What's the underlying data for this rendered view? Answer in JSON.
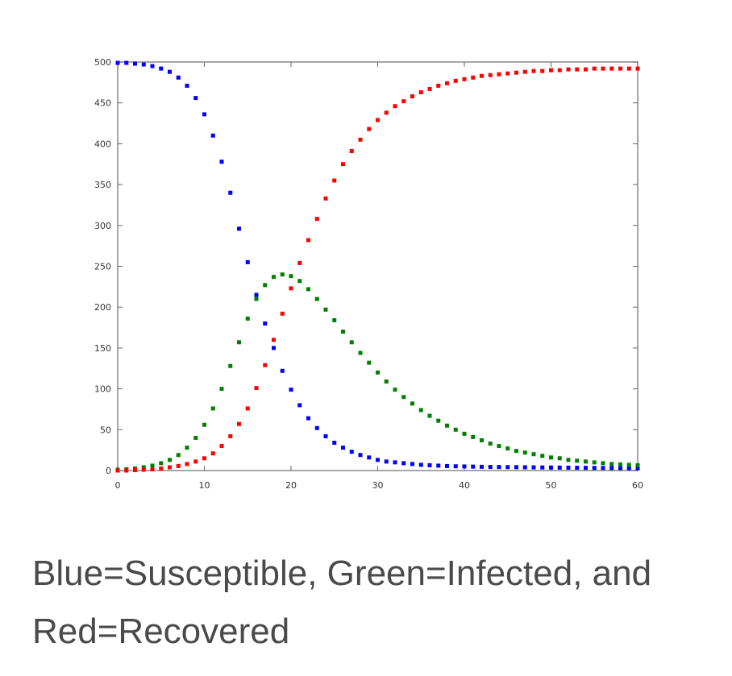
{
  "chart_data": {
    "type": "scatter",
    "title": "",
    "xlabel": "",
    "ylabel": "",
    "xlim": [
      0,
      60
    ],
    "ylim": [
      0,
      500
    ],
    "x_ticks": [
      0,
      10,
      20,
      30,
      40,
      50,
      60
    ],
    "y_ticks": [
      0,
      50,
      100,
      150,
      200,
      250,
      300,
      350,
      400,
      450,
      500
    ],
    "grid": false,
    "legend": "none",
    "x": [
      0,
      1,
      2,
      3,
      4,
      5,
      6,
      7,
      8,
      9,
      10,
      11,
      12,
      13,
      14,
      15,
      16,
      17,
      18,
      19,
      20,
      21,
      22,
      23,
      24,
      25,
      26,
      27,
      28,
      29,
      30,
      31,
      32,
      33,
      34,
      35,
      36,
      37,
      38,
      39,
      40,
      41,
      42,
      43,
      44,
      45,
      46,
      47,
      48,
      49,
      50,
      51,
      52,
      53,
      54,
      55,
      56,
      57,
      58,
      59,
      60
    ],
    "series": [
      {
        "color": "#0000ff",
        "values": [
          499,
          499,
          498,
          497,
          495,
          492,
          488,
          481,
          471,
          456,
          436,
          410,
          378,
          340,
          296,
          255,
          215,
          180,
          150,
          122,
          99,
          80,
          64,
          52,
          42,
          34,
          28,
          23,
          19,
          16,
          13,
          11,
          10,
          9,
          8,
          7,
          6.5,
          6,
          5.5,
          5.2,
          5,
          4.8,
          4.6,
          4.4,
          4.3,
          4.2,
          4.1,
          4,
          3.9,
          3.8,
          3.7,
          3.6,
          3.5,
          3.4,
          3.3,
          3.2,
          3.1,
          3,
          2.9,
          2.8,
          2.7
        ]
      },
      {
        "color": "#008000",
        "values": [
          1,
          1.5,
          2.5,
          4,
          6,
          9,
          13,
          19,
          28,
          40,
          56,
          76,
          100,
          128,
          157,
          186,
          210,
          227,
          237,
          240,
          238,
          232,
          222,
          210,
          197,
          184,
          170,
          157,
          144,
          132,
          120,
          109,
          99,
          90,
          82,
          74,
          67,
          61,
          55,
          50,
          45,
          41,
          37,
          33,
          30,
          27,
          24,
          22,
          20,
          18,
          16,
          15,
          13,
          12,
          11,
          10,
          9,
          8,
          7.5,
          7,
          6.5
        ]
      },
      {
        "color": "#ff0000",
        "values": [
          0,
          0,
          0.5,
          1,
          1.5,
          2.5,
          4,
          5.5,
          8,
          11,
          15,
          21,
          30,
          42,
          57,
          76,
          101,
          129,
          160,
          192,
          223,
          254,
          282,
          308,
          333,
          355,
          375,
          391,
          405,
          418,
          429,
          438,
          446,
          452,
          458,
          463,
          467,
          471,
          474,
          477,
          479,
          481,
          483,
          484,
          485,
          486,
          487,
          488,
          489,
          489,
          490,
          490,
          491,
          491,
          491,
          492,
          492,
          492,
          492,
          492,
          492
        ]
      }
    ]
  },
  "caption": {
    "line1": "Blue=Susceptible, Green=Infected, and",
    "line2": "Red=Recovered"
  }
}
